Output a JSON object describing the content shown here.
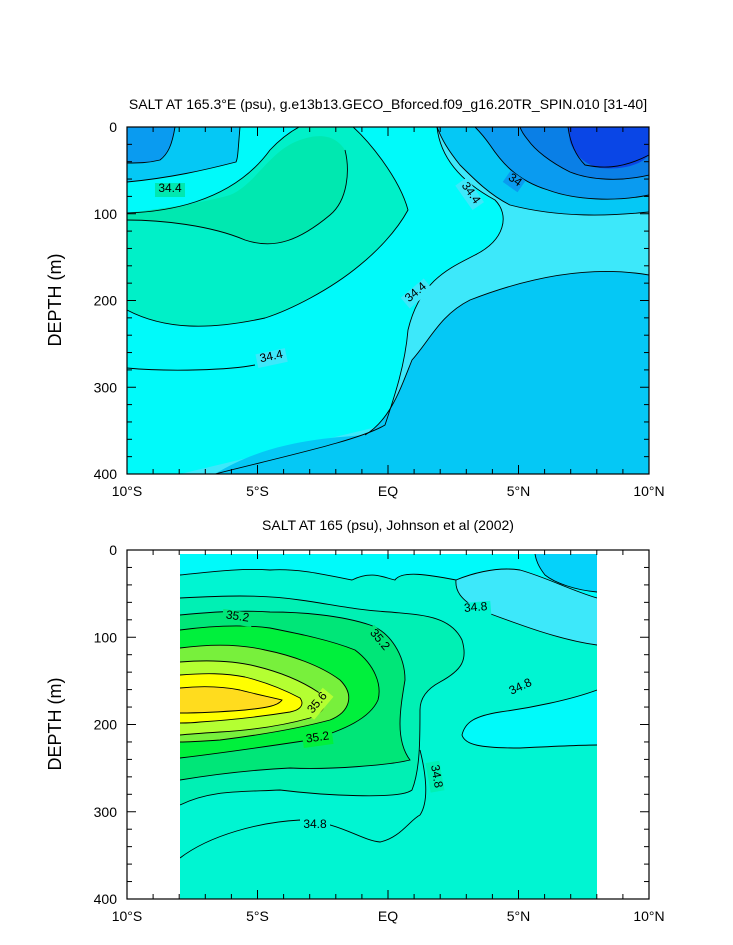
{
  "chart_data": [
    {
      "type": "contour",
      "title": "SALT AT 165.3°E (psu), g.e13b13.GECO_Bforced.f09_g16.20TR_SPIN.010 [31-40]",
      "ylabel": "DEPTH (m)",
      "xlim": [
        -10,
        10
      ],
      "ylim": [
        400,
        0
      ],
      "x_ticks": [
        -10,
        -5,
        0,
        5,
        10
      ],
      "x_tick_labels": [
        "10°S",
        "5°S",
        "EQ",
        "5°N",
        "10°N"
      ],
      "y_ticks": [
        0,
        100,
        200,
        300,
        400
      ],
      "y_tick_labels": [
        "0",
        "100",
        "200",
        "300",
        "400"
      ],
      "contour_labels": [
        {
          "text": "34.4",
          "x": -8.2,
          "y": 75
        },
        {
          "text": "34.4",
          "x": 3.2,
          "y": 78
        },
        {
          "text": "34",
          "x": 5.5,
          "y": 65
        },
        {
          "text": "34.4",
          "x": 1.2,
          "y": 190
        },
        {
          "text": "34.4",
          "x": -4.4,
          "y": 268
        }
      ],
      "palette": {
        "deep_blue": "#0a46e6",
        "blue": "#0a9bf0",
        "mid_blue": "#05c8f5",
        "light_cyan": "#3de8fa",
        "cyan": "#00fafa",
        "aqua": "#00f0c8",
        "green_aqua": "#00e8b0"
      }
    },
    {
      "type": "contour",
      "title": "SALT AT 165 (psu), Johnson et al (2002)",
      "ylabel": "DEPTH (m)",
      "xlim": [
        -10,
        10
      ],
      "ylim": [
        400,
        0
      ],
      "data_xlim": [
        -8,
        8
      ],
      "x_ticks": [
        -10,
        -5,
        0,
        5,
        10
      ],
      "x_tick_labels": [
        "10°S",
        "5°S",
        "EQ",
        "5°N",
        "10°N"
      ],
      "y_ticks": [
        0,
        100,
        200,
        300,
        400
      ],
      "y_tick_labels": [
        "0",
        "100",
        "200",
        "300",
        "400"
      ],
      "contour_labels": [
        {
          "text": "35.2",
          "x": -5.8,
          "y": 78
        },
        {
          "text": "35.2",
          "x": -0.4,
          "y": 105
        },
        {
          "text": "34.8",
          "x": 3.3,
          "y": 68
        },
        {
          "text": "35.6",
          "x": -2.6,
          "y": 175
        },
        {
          "text": "34.8",
          "x": 5.4,
          "y": 165
        },
        {
          "text": "35.2",
          "x": -2.7,
          "y": 218
        },
        {
          "text": "34.8",
          "x": 1.7,
          "y": 262
        },
        {
          "text": "34.8",
          "x": -2.9,
          "y": 318
        }
      ],
      "palette": {
        "yellow": "#ffff00",
        "gold": "#ffdc1e",
        "yellow_green": "#b4ff32",
        "lime": "#78f03c",
        "green": "#00f03c",
        "mid_green": "#00e678",
        "sea_green": "#00f0b4",
        "aqua": "#00f5d2",
        "cyan": "#00fafa",
        "light_cyan": "#3de8fa",
        "sky": "#05d2fa"
      }
    }
  ]
}
